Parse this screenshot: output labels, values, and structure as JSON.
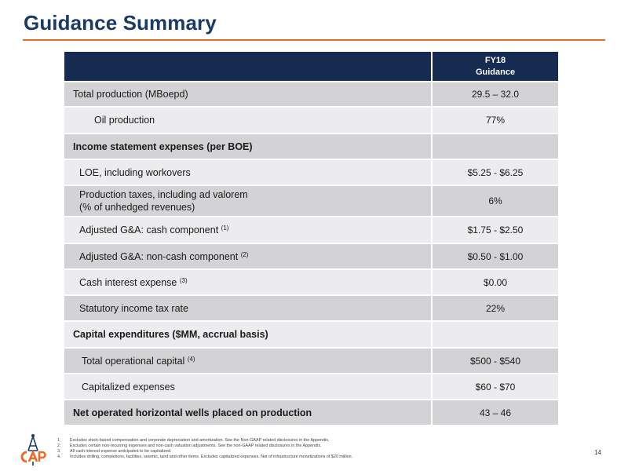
{
  "title": "Guidance Summary",
  "table": {
    "header": {
      "line1": "FY18",
      "line2": "Guidance"
    },
    "rows": [
      {
        "label": "Total production (MBoepd)",
        "sup": "",
        "value": "29.5 – 32.0"
      },
      {
        "label": "Oil production",
        "sup": "",
        "value": "77%"
      },
      {
        "label": "Income statement expenses (per BOE)",
        "sup": "",
        "value": ""
      },
      {
        "label": "LOE, including workovers",
        "sup": "",
        "value": "$5.25 - $6.25"
      },
      {
        "label": "Production taxes, including ad valorem",
        "label2": "(% of unhedged revenues)",
        "sup": "",
        "value": "6%"
      },
      {
        "label": "Adjusted G&A: cash component ",
        "sup": "(1)",
        "value": "$1.75 - $2.50"
      },
      {
        "label": "Adjusted G&A: non-cash component ",
        "sup": "(2)",
        "value": "$0.50 - $1.00"
      },
      {
        "label": "Cash interest expense ",
        "sup": "(3)",
        "value": "$0.00"
      },
      {
        "label": "Statutory income tax rate",
        "sup": "",
        "value": "22%"
      },
      {
        "label": "Capital expenditures ($MM, accrual basis)",
        "sup": "",
        "value": ""
      },
      {
        "label": "Total operational capital ",
        "sup": "(4)",
        "value": "$500 - $540"
      },
      {
        "label": "Capitalized expenses",
        "sup": "",
        "value": "$60 - $70"
      },
      {
        "label": "Net operated horizontal wells placed on production",
        "sup": "",
        "value": "43 – 46"
      }
    ]
  },
  "footnotes": [
    {
      "num": "1.",
      "text": "Excludes stock-based compensation and corporate depreciation and amortization. See the Non-GAAP related disclosures in the Appendix."
    },
    {
      "num": "2.",
      "text": "Excludes certain non-recurring expenses and non-cash valuation adjustments. See the non-GAAP related disclosures in the Appendix."
    },
    {
      "num": "3.",
      "text": "All cash interest expense anticipated to be capitalized."
    },
    {
      "num": "4.",
      "text": "Includes drilling, completions, facilities, seismic, land and other items. Excludes capitalized expenses. Net of infrastructure monetizations of $20 million."
    }
  ],
  "page_number": "14",
  "logo": {
    "icon": "company-logo-icon",
    "primary_color": "#ea6b25",
    "secondary_color": "#1c3a66"
  },
  "colors": {
    "header_bg": "#162b52",
    "title": "#1c3a66",
    "accent": "#ea6b25",
    "row_dark": "#d3d3d5",
    "row_light": "#ececee"
  }
}
